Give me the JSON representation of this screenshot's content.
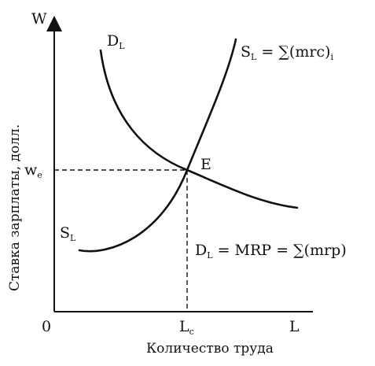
{
  "diagram": {
    "y_axis_symbol": "W",
    "x_axis_symbol": "L",
    "origin_label": "0",
    "y_axis_title": "Ставка зарплаты, долл.",
    "x_axis_title": "Количество труда",
    "equilibrium_label": "E",
    "wage_tick": {
      "base": "w",
      "sub": "e"
    },
    "quantity_tick": {
      "base": "L",
      "sub": "c"
    },
    "demand_top_label": {
      "base": "D",
      "sub": "L"
    },
    "supply_top_label": {
      "base": "S",
      "sub": "L",
      "rest": " = ∑(mrc)",
      "tail_sub": "i"
    },
    "supply_bottom_label": {
      "base": "S",
      "sub": "L"
    },
    "demand_bottom_label": {
      "base": "D",
      "sub": "L",
      "rest": " = MRP = ∑(mrp)"
    }
  }
}
